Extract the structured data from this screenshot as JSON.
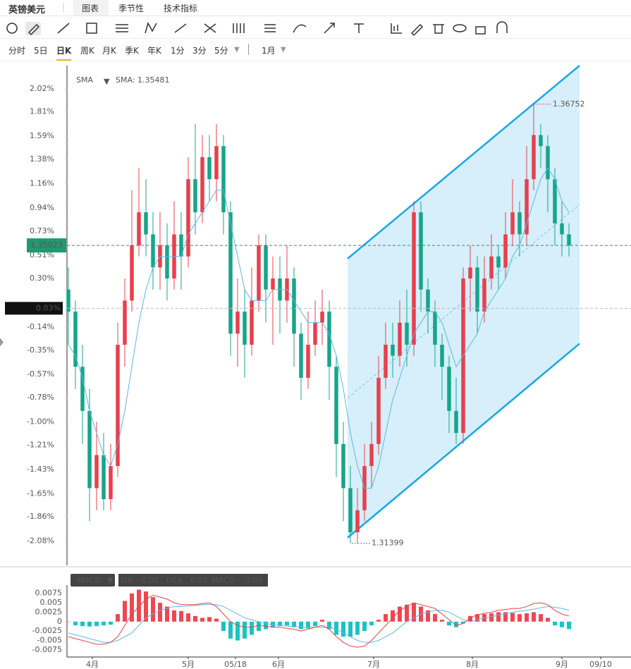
{
  "header": {
    "symbol": "英镑美元",
    "tabs": [
      "图表",
      "季节性",
      "技术指标"
    ]
  },
  "periods": [
    "分时",
    "5日",
    "日K",
    "周K",
    "月K",
    "季K",
    "年K",
    "1分",
    "3分",
    "5分"
  ],
  "range": "1月",
  "chart_data": [
    {
      "type": "candlestick",
      "legend": {
        "name": "SMA",
        "value_label": "SMA: 1.35481"
      },
      "up_color": "#e8404c",
      "down_color": "#17a589",
      "sma_color": "#5bb8e8",
      "channel_color": "#1aa6e8",
      "xlim": [
        -0.2,
        79.8
      ],
      "ylim": [
        -2.3,
        2.23
      ],
      "yticks": [
        {
          "value": 2.02,
          "label": "2.02%"
        },
        {
          "value": 1.81,
          "label": "1.81%"
        },
        {
          "value": 1.59,
          "label": "1.59%"
        },
        {
          "value": 1.38,
          "label": "1.38%"
        },
        {
          "value": 1.16,
          "label": "1.16%"
        },
        {
          "value": 0.94,
          "label": "0.94%"
        },
        {
          "value": 0.73,
          "label": "0.73%"
        },
        {
          "value": 0.51,
          "label": "0.51%"
        },
        {
          "value": 0.3,
          "label": "0.30%"
        },
        {
          "value": -0.14,
          "label": "-0.14%"
        },
        {
          "value": -0.35,
          "label": "-0.35%"
        },
        {
          "value": -0.57,
          "label": "-0.57%"
        },
        {
          "value": -0.78,
          "label": "-0.78%"
        },
        {
          "value": -1.0,
          "label": "-1.00%"
        },
        {
          "value": -1.21,
          "label": "-1.21%"
        },
        {
          "value": -1.43,
          "label": "-1.43%"
        },
        {
          "value": -1.65,
          "label": "-1.65%"
        },
        {
          "value": -1.86,
          "label": "-1.86%"
        },
        {
          "value": -2.08,
          "label": "-2.08%"
        }
      ],
      "open": [
        0.2,
        0.0,
        -0.5,
        -0.9,
        -1.6,
        -1.3,
        -1.7,
        -1.4,
        -0.3,
        0.1,
        0.6,
        0.9,
        0.7,
        0.4,
        0.6,
        0.3,
        0.7,
        0.5,
        1.2,
        0.9,
        1.4,
        1.2,
        1.5,
        0.9,
        -0.2,
        0.0,
        -0.3,
        0.1,
        0.6,
        0.2,
        0.3,
        0.1,
        0.3,
        -0.2,
        -0.6,
        -0.3,
        -0.1,
        0.0,
        -0.5,
        -1.2,
        -1.6,
        -2.0,
        -1.8,
        -1.4,
        -1.2,
        -0.6,
        -0.3,
        -0.4,
        -0.1,
        -0.3,
        0.9,
        0.2,
        0.0,
        -0.3,
        -0.5,
        -0.9,
        -1.1,
        0.3,
        0.4,
        0.0,
        0.3,
        0.5,
        0.4,
        0.7,
        0.9,
        0.7,
        1.2,
        1.6,
        1.5,
        1.2,
        0.8,
        0.7
      ],
      "high": [
        0.4,
        0.1,
        -0.3,
        -0.7,
        -1.0,
        -1.1,
        -1.2,
        -0.1,
        0.3,
        1.1,
        1.3,
        1.2,
        0.9,
        0.9,
        0.8,
        1.0,
        0.9,
        1.4,
        1.7,
        1.6,
        1.6,
        1.7,
        1.6,
        1.0,
        0.3,
        0.2,
        0.4,
        0.7,
        0.7,
        0.5,
        0.5,
        0.6,
        0.4,
        -0.1,
        0.0,
        0.1,
        0.2,
        0.1,
        -0.4,
        -1.0,
        -1.4,
        -1.6,
        -1.2,
        -1.0,
        -0.4,
        -0.1,
        -0.1,
        0.1,
        0.2,
        1.0,
        1.0,
        0.3,
        0.1,
        -0.2,
        -0.4,
        -0.6,
        0.4,
        0.6,
        0.5,
        0.5,
        0.7,
        0.6,
        0.9,
        1.2,
        1.0,
        1.5,
        1.88,
        1.7,
        1.6,
        1.3,
        1.0,
        0.8
      ],
      "low": [
        -0.3,
        -0.7,
        -1.2,
        -1.9,
        -1.8,
        -1.8,
        -1.8,
        -1.5,
        -0.5,
        0.0,
        0.5,
        0.5,
        0.2,
        0.2,
        0.1,
        0.2,
        0.2,
        0.4,
        0.7,
        0.8,
        1.0,
        1.0,
        0.7,
        -0.4,
        -0.5,
        -0.6,
        -0.4,
        0.0,
        -0.1,
        -0.3,
        -0.2,
        -0.1,
        -0.5,
        -0.8,
        -0.7,
        -0.4,
        -0.3,
        -0.8,
        -1.5,
        -1.9,
        -2.1,
        -2.1,
        -1.9,
        -1.6,
        -1.3,
        -0.7,
        -0.6,
        -0.5,
        -0.5,
        -0.4,
        0.0,
        -0.2,
        -0.5,
        -0.8,
        -1.1,
        -1.2,
        -1.2,
        0.0,
        -0.2,
        -0.1,
        0.2,
        0.2,
        0.3,
        0.6,
        0.5,
        0.6,
        1.1,
        1.3,
        0.9,
        0.6,
        0.5,
        0.5
      ],
      "close": [
        0.0,
        -0.5,
        -0.9,
        -1.6,
        -1.3,
        -1.7,
        -1.4,
        -0.3,
        0.1,
        0.6,
        0.9,
        0.7,
        0.4,
        0.6,
        0.3,
        0.7,
        0.5,
        1.2,
        0.9,
        1.4,
        1.2,
        1.5,
        0.9,
        -0.2,
        0.0,
        -0.3,
        0.1,
        0.6,
        0.2,
        0.3,
        0.1,
        0.3,
        -0.2,
        -0.6,
        -0.3,
        -0.1,
        0.0,
        -0.5,
        -1.2,
        -1.6,
        -2.0,
        -1.8,
        -1.4,
        -1.2,
        -0.6,
        -0.3,
        -0.4,
        -0.1,
        -0.3,
        0.9,
        0.2,
        0.0,
        -0.3,
        -0.5,
        -0.9,
        -1.1,
        0.3,
        0.4,
        0.0,
        0.3,
        0.5,
        0.4,
        0.7,
        0.9,
        0.7,
        1.2,
        1.6,
        1.5,
        1.2,
        0.8,
        0.7,
        0.6
      ],
      "sma": [
        -0.3,
        -0.4,
        -0.6,
        -0.9,
        -1.1,
        -1.3,
        -1.4,
        -1.2,
        -0.9,
        -0.5,
        -0.1,
        0.2,
        0.4,
        0.5,
        0.5,
        0.5,
        0.5,
        0.7,
        0.8,
        0.9,
        1.0,
        1.1,
        1.1,
        0.8,
        0.5,
        0.2,
        0.1,
        0.1,
        0.1,
        0.2,
        0.2,
        0.2,
        0.1,
        0.0,
        -0.1,
        -0.1,
        -0.1,
        -0.2,
        -0.4,
        -0.7,
        -1.1,
        -1.4,
        -1.6,
        -1.6,
        -1.4,
        -1.1,
        -0.8,
        -0.6,
        -0.4,
        -0.2,
        -0.1,
        0.0,
        0.0,
        -0.1,
        -0.3,
        -0.5,
        -0.4,
        -0.3,
        -0.2,
        0.0,
        0.1,
        0.2,
        0.3,
        0.5,
        0.6,
        0.8,
        1.0,
        1.2,
        1.3,
        1.2,
        1.0,
        0.9
      ],
      "channel": {
        "x": [
          39.6,
          72.5
        ],
        "upper": [
          0.48,
          2.23
        ],
        "lower": [
          -2.05,
          -0.29
        ]
      },
      "current": {
        "value": 0.6,
        "label": "1.35023"
      },
      "crosshair": {
        "value": 0.03,
        "label": "0.03%"
      },
      "max_marker": {
        "index": 66,
        "value": 1.88,
        "label": "1.36752"
      },
      "min_marker": {
        "index": 40,
        "value": -2.1,
        "label": "1.31399"
      }
    },
    {
      "type": "macd",
      "name": "MACD",
      "readout": [
        "DIF : 0.00",
        "DEA : 0.00",
        "MACD : -0.00"
      ],
      "up_color": "#f0474f",
      "down_color": "#1bc3c3",
      "dif_color": "#e8404c",
      "dea_color": "#5bb8e8",
      "xlim": [
        -0.2,
        79.8
      ],
      "ylim": [
        -0.0094,
        0.0097
      ],
      "yticks": [
        0.0075,
        0.005,
        0.0025,
        0,
        -0.0025,
        -0.005,
        -0.0075
      ],
      "xticks": [
        {
          "value": 3.4,
          "label": "4月"
        },
        {
          "value": 17,
          "label": "5月"
        },
        {
          "value": 23.7,
          "label": "05/18"
        },
        {
          "value": 29.8,
          "label": "6月"
        },
        {
          "value": 43.3,
          "label": "7月"
        },
        {
          "value": 57.3,
          "label": "8月"
        },
        {
          "value": 70,
          "label": "9月"
        },
        {
          "value": 75.5,
          "label": "09/10"
        }
      ],
      "hist": [
        0.0,
        -0.001,
        -0.0012,
        -0.0013,
        -0.0012,
        -0.001,
        -0.0008,
        0.002,
        0.0055,
        0.0075,
        0.0085,
        0.008,
        0.0065,
        0.005,
        0.004,
        0.003,
        0.0028,
        0.0022,
        0.0015,
        0.001,
        0.0012,
        0.0008,
        -0.0025,
        -0.0045,
        -0.005,
        -0.0045,
        -0.0035,
        -0.0025,
        -0.002,
        -0.0015,
        -0.0012,
        -0.001,
        -0.0015,
        -0.002,
        -0.0018,
        -0.0012,
        0.0005,
        -0.002,
        -0.0035,
        -0.004,
        -0.004,
        -0.0035,
        -0.0025,
        -0.001,
        0.0005,
        0.002,
        0.003,
        0.004,
        0.0045,
        0.005,
        0.004,
        0.003,
        0.002,
        0.0005,
        -0.001,
        -0.0015,
        -0.0005,
        0.0015,
        0.002,
        0.002,
        0.0022,
        0.0025,
        0.0025,
        0.0023,
        0.002,
        0.0022,
        0.0025,
        0.002,
        0.001,
        -0.001,
        -0.0015,
        -0.002
      ],
      "dif": [
        -0.004,
        -0.0045,
        -0.005,
        -0.0055,
        -0.006,
        -0.006,
        -0.0055,
        -0.004,
        -0.001,
        0.002,
        0.004,
        0.006,
        0.007,
        0.0065,
        0.006,
        0.005,
        0.0045,
        0.0045,
        0.0045,
        0.0048,
        0.005,
        0.004,
        0.002,
        0.0,
        -0.001,
        -0.0015,
        -0.0015,
        -0.001,
        -0.0012,
        -0.0015,
        -0.0015,
        -0.0018,
        -0.002,
        -0.0025,
        -0.002,
        -0.0015,
        -0.001,
        -0.002,
        -0.004,
        -0.0055,
        -0.0065,
        -0.0068,
        -0.0065,
        -0.005,
        -0.003,
        -0.001,
        0.001,
        0.003,
        0.004,
        0.005,
        0.0045,
        0.004,
        0.0035,
        0.002,
        0.0005,
        -0.001,
        -0.0005,
        0.001,
        0.0018,
        0.0022,
        0.0025,
        0.003,
        0.0032,
        0.0035,
        0.0035,
        0.004,
        0.0048,
        0.005,
        0.0045,
        0.003,
        0.002,
        0.0015
      ],
      "dea": [
        -0.003,
        -0.0035,
        -0.004,
        -0.0045,
        -0.005,
        -0.0055,
        -0.0055,
        -0.005,
        -0.004,
        -0.003,
        -0.001,
        0.001,
        0.002,
        0.003,
        0.0035,
        0.004,
        0.004,
        0.0042,
        0.0043,
        0.0045,
        0.0046,
        0.0045,
        0.004,
        0.003,
        0.002,
        0.001,
        0.0005,
        0.0,
        -0.0005,
        -0.0008,
        -0.001,
        -0.0012,
        -0.0013,
        -0.0015,
        -0.0015,
        -0.0015,
        -0.0015,
        -0.0015,
        -0.002,
        -0.003,
        -0.004,
        -0.005,
        -0.0055,
        -0.0055,
        -0.005,
        -0.004,
        -0.003,
        -0.0015,
        0.0,
        0.001,
        0.002,
        0.0025,
        0.003,
        0.003,
        0.0025,
        0.0015,
        0.0005,
        0.0,
        0.0005,
        0.001,
        0.0013,
        0.0017,
        0.002,
        0.0025,
        0.0028,
        0.003,
        0.0033,
        0.0037,
        0.004,
        0.0038,
        0.0035,
        0.003
      ]
    }
  ]
}
